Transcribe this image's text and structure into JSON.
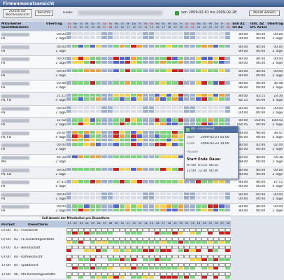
{
  "title": "Firmenmonatsansicht",
  "toolbar": {
    "back": "Zurück zur Wochenansicht",
    "reports": "Berichte",
    "branch_label": "Filiale:",
    "range": "von 2009-02-01 bis 2009-02-28",
    "choose_month": "Monat wählen"
  },
  "table": {
    "headers": {
      "employee": "Mitarbeiter",
      "qualifications": "Qualifikationen",
      "carry": "Übertrag",
      "target": "Soll AZ",
      "actual": "Ist AZ",
      "real": "Tats. AZ",
      "vacation": "Url. Krank",
      "carry_out": "Übertrag"
    },
    "days": [
      {
        "wd": "So",
        "d": "01"
      },
      {
        "wd": "Mo",
        "d": "02"
      },
      {
        "wd": "Di",
        "d": "03"
      },
      {
        "wd": "Mi",
        "d": "04"
      },
      {
        "wd": "Do",
        "d": "05"
      },
      {
        "wd": "Fr",
        "d": "06"
      },
      {
        "wd": "Sa",
        "d": "07"
      },
      {
        "wd": "So",
        "d": "08"
      },
      {
        "wd": "Mo",
        "d": "09"
      },
      {
        "wd": "Di",
        "d": "10"
      },
      {
        "wd": "Mi",
        "d": "11"
      },
      {
        "wd": "Do",
        "d": "12"
      },
      {
        "wd": "Fr",
        "d": "13"
      },
      {
        "wd": "Sa",
        "d": "14"
      },
      {
        "wd": "So",
        "d": "15"
      },
      {
        "wd": "Mo",
        "d": "16"
      },
      {
        "wd": "Di",
        "d": "17"
      },
      {
        "wd": "Mi",
        "d": "18"
      },
      {
        "wd": "Do",
        "d": "19"
      },
      {
        "wd": "Fr",
        "d": "20"
      },
      {
        "wd": "Sa",
        "d": "21"
      },
      {
        "wd": "So",
        "d": "22"
      },
      {
        "wd": "Mo",
        "d": "23"
      },
      {
        "wd": "Di",
        "d": "24"
      },
      {
        "wd": "Mi",
        "d": "25"
      },
      {
        "wd": "Do",
        "d": "26"
      },
      {
        "wd": "Fr",
        "d": "27"
      },
      {
        "wd": "Sa",
        "d": "28"
      }
    ],
    "rows": [
      {
        "qual": "Pa",
        "carry": [
          "00:00",
          "2 Tage"
        ],
        "hours": [
          "80:00",
          "00:00"
        ],
        "real": [
          "00:00",
          "00:00"
        ],
        "carry_out": [
          "00:00",
          "2 Tage"
        ]
      },
      {
        "qual": "Pa",
        "carry": [
          "00:00",
          "2 Tage"
        ],
        "hours": [
          "80:00",
          "80:00"
        ],
        "real": [
          "80:00",
          "00:00"
        ],
        "carry_out": [
          "00:00",
          "2 Tage"
        ]
      },
      {
        "qual": "Pa",
        "carry": [
          "00:00",
          "2 Tage"
        ],
        "hours": [
          "80:00",
          "80:00"
        ],
        "real": [
          "80:00",
          "00:00"
        ],
        "carry_out": [
          "00:00",
          "2 Tage"
        ]
      },
      {
        "qual": "Pa",
        "carry": [
          "00:00",
          "2 Tage"
        ],
        "hours": [
          "80:00",
          "80:00"
        ],
        "real": [
          "80:00",
          "00:00"
        ],
        "carry_out": [
          "00:00",
          "2 Tage"
        ]
      },
      {
        "qual": "Pa",
        "carry": [
          "20:48",
          "2 Tage"
        ],
        "hours": [
          "80:00",
          "96:00"
        ],
        "real": [
          "96:00",
          "00:00"
        ],
        "carry_out": [
          "36:48",
          "2 Tage"
        ]
      },
      {
        "qual": "Pa, FD",
        "carry": [
          "21:15",
          "4 Tage"
        ],
        "hours": [
          "80:00",
          "82:15"
        ],
        "real": [
          "82:15",
          "00:00"
        ],
        "carry_out": [
          "23:30",
          "4 Tage"
        ]
      },
      {
        "qual": "Pa",
        "carry": [
          "00:00",
          "2 Tage"
        ],
        "hours": [
          "80:00",
          "00:00"
        ],
        "real": [
          "00:00",
          "00:00"
        ],
        "carry_out": [
          "00:00",
          "2 Tage"
        ]
      },
      {
        "qual": "Pa",
        "carry": [
          "15:58",
          "2 Tage"
        ],
        "hours": [
          "80:00",
          "164:45"
        ],
        "real": [
          "164:45",
          "00:00"
        ],
        "carry_out": [
          "100:43",
          "2 Tage"
        ]
      },
      {
        "qual": "Pa, FD",
        "carry": [
          "20:47",
          "4 Tage"
        ],
        "hours": [
          "80:00",
          "96:00"
        ],
        "real": [
          "96:00",
          "00:00"
        ],
        "carry_out": [
          "36:47",
          "4 Tage"
        ]
      },
      {
        "qual": "Pa",
        "carry": [
          "00:00",
          "2 Tage"
        ],
        "hours": [
          "80:00",
          "82:00"
        ],
        "real": [
          "82:00",
          "00:00"
        ],
        "carry_out": [
          "02:00",
          "2 Tage"
        ]
      },
      {
        "qual": "Ma",
        "carry": [
          "46:38",
          "2 Tage"
        ],
        "hours": [
          "80:00",
          "88:00"
        ],
        "real": [
          "88:00",
          "00:00"
        ],
        "carry_out": [
          "54:38",
          "2 Tage"
        ]
      },
      {
        "qual": "Pa, ED",
        "carry": [
          "00:00",
          "2 Tage"
        ],
        "hours": [
          "80:00",
          "80:00"
        ],
        "real": [
          "80:00",
          "00:00"
        ],
        "carry_out": [
          "00:00",
          "2 Tage"
        ]
      },
      {
        "qual": "Pa",
        "carry": [
          "27:15",
          "4 Tage"
        ],
        "hours": [
          "80:00",
          "80:00"
        ],
        "real": [
          "80:00",
          "00:00"
        ],
        "carry_out": [
          "27:15",
          "4 Tage"
        ]
      },
      {
        "qual": "Pa",
        "carry": [
          "00:00",
          "2 Tage"
        ],
        "hours": [
          "80:00",
          "00:00"
        ],
        "real": [
          "00:00",
          "00:00"
        ],
        "carry_out": [
          "00:00",
          "2 Tage"
        ]
      },
      {
        "qual": "Pa",
        "carry": [
          "00:00",
          "2 Tage"
        ],
        "hours": [
          "80:00",
          "80:00"
        ],
        "real": [
          "80:00",
          "00:00"
        ],
        "carry_out": [
          "00:00",
          "2 Tage"
        ]
      }
    ]
  },
  "popup": {
    "title": "06 - Frühdienst",
    "start_label": "Start",
    "start": "2009-02-23 05:00",
    "end_label": "Ende",
    "end": "2009-02-23 14:00",
    "breaks": "Pausen",
    "cols": [
      "Start",
      "Ende",
      "Dauer"
    ],
    "rows": [
      [
        "07:00",
        "07:15",
        "00:15"
      ],
      [
        "12:00",
        "12:30",
        "00:30"
      ]
    ]
  },
  "demand": {
    "title": "Soll-Anzahl der Mitarbeiter pro Dienstform",
    "headers": {
      "time": "Profunt",
      "shift": "Dienstform"
    },
    "rows": [
      {
        "time": "07:00",
        "shift": "01 - Frühdienst"
      },
      {
        "time": "07:00",
        "shift": "02 - FE-Kindertagesstätte"
      },
      {
        "time": "07:00",
        "shift": "03 - Bereitschaft"
      },
      {
        "time": "07:00",
        "shift": "04 - Kaffeeschicht"
      },
      {
        "time": "17:00",
        "shift": "05 - Spätdienst"
      },
      {
        "time": "17:00",
        "shift": "06 - MH Kindertagesstätte"
      }
    ]
  }
}
